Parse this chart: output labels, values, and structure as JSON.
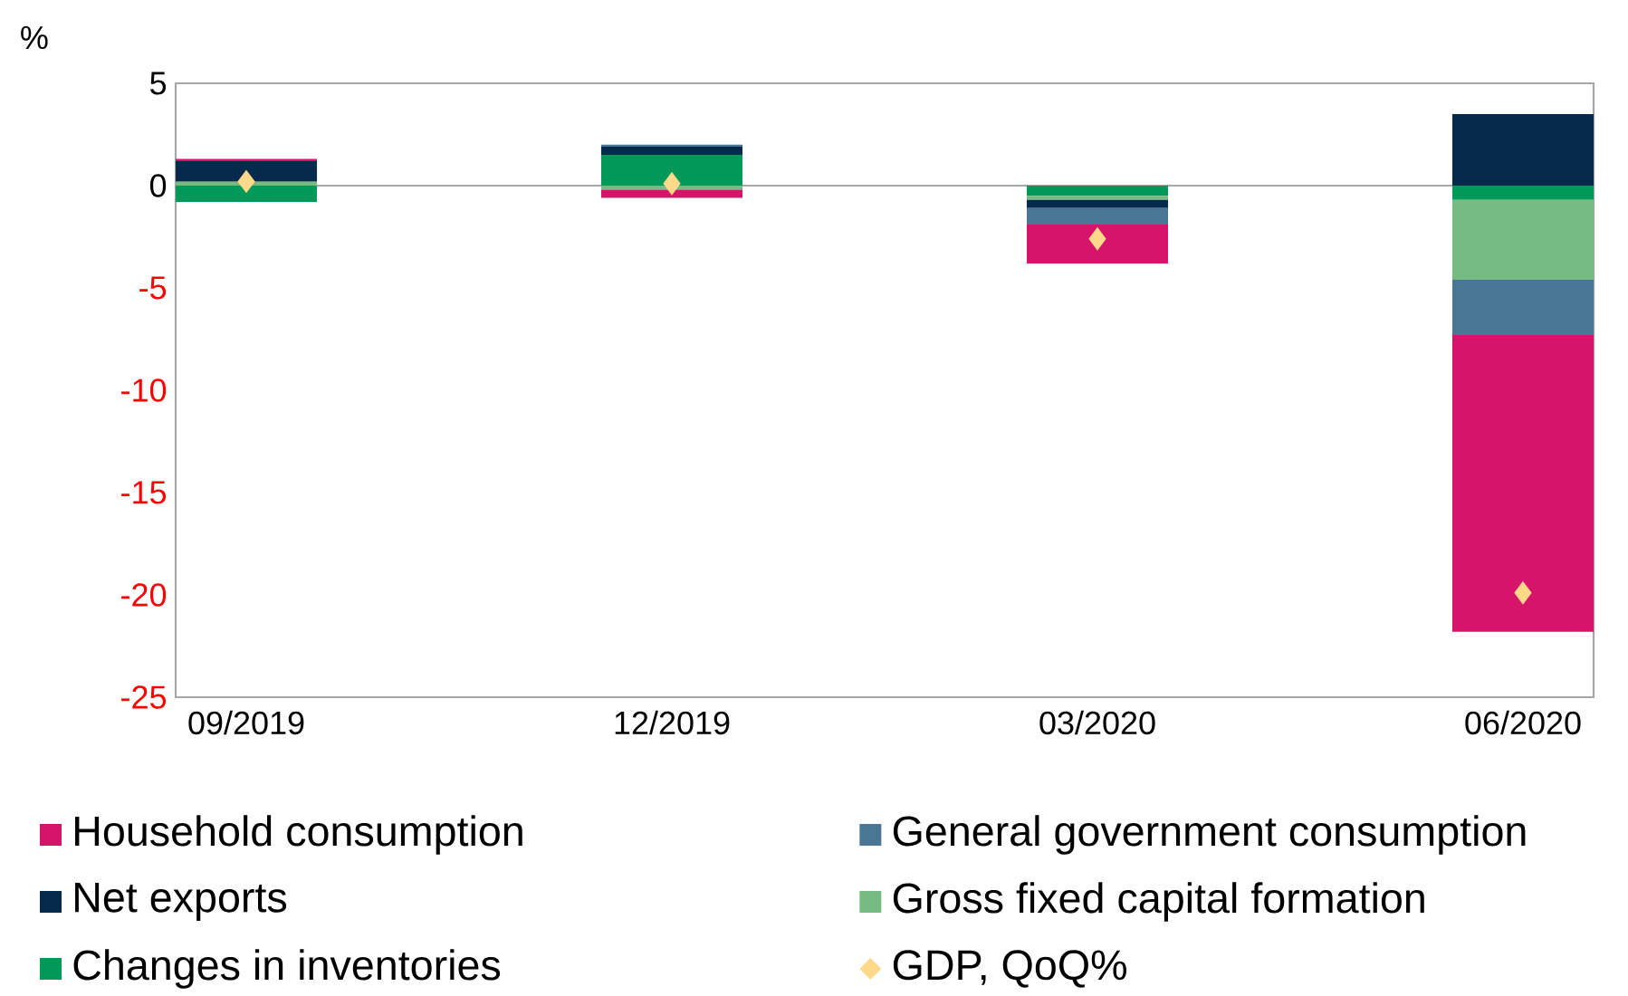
{
  "chart_data": {
    "type": "bar",
    "stacked": true,
    "annotations": [
      "%"
    ],
    "ref_lines": [
      {
        "axis": "y",
        "value": 0,
        "color": "#a6a6a6"
      }
    ],
    "categories": [
      "09/2019",
      "12/2019",
      "03/2020",
      "06/2020"
    ],
    "series": [
      {
        "name": "Changes in inventories",
        "color": "#00995a",
        "values": [
          -0.8,
          1.5,
          -0.5,
          -0.7
        ]
      },
      {
        "name": "Gross fixed capital formation",
        "color": "#76bb82",
        "values": [
          0.2,
          -0.2,
          -0.2,
          -3.9
        ]
      },
      {
        "name": "Net exports",
        "color": "#062a4c",
        "values": [
          1.0,
          0.4,
          -0.4,
          3.5
        ]
      },
      {
        "name": "General government consumption",
        "color": "#4a7696",
        "values": [
          0,
          0.1,
          -0.8,
          -2.7
        ]
      },
      {
        "name": "Household consumption",
        "color": "#d6156a",
        "values": [
          0.1,
          -0.4,
          -1.9,
          -14.5
        ]
      },
      {
        "name": "GDP, QoQ%",
        "type": "scatter",
        "marker": "diamond",
        "color": "#ffd98a",
        "values": [
          0.2,
          0.1,
          -2.6,
          -19.9
        ]
      }
    ],
    "ylim": [
      -25,
      5
    ],
    "yticks": [
      5,
      0,
      -5,
      -10,
      -15,
      -20,
      -25
    ],
    "grid": false,
    "legend": "bottom"
  }
}
